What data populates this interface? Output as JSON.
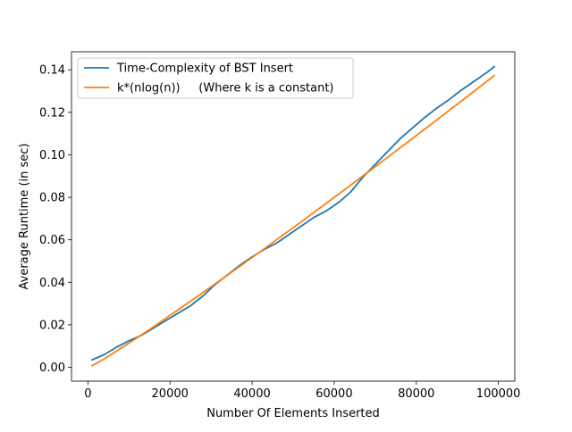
{
  "chart_data": {
    "type": "line",
    "title": "",
    "xlabel": "Number Of Elements Inserted",
    "ylabel": "Average Runtime (in sec)",
    "xlim": [
      -4000,
      104000
    ],
    "ylim": [
      -0.0065,
      0.1485
    ],
    "xticks": [
      0,
      20000,
      40000,
      60000,
      80000,
      100000
    ],
    "xtick_labels": [
      "0",
      "20000",
      "40000",
      "60000",
      "80000",
      "100000"
    ],
    "yticks": [
      0.0,
      0.02,
      0.04,
      0.06,
      0.08,
      0.1,
      0.12,
      0.14
    ],
    "ytick_labels": [
      "0.00",
      "0.02",
      "0.04",
      "0.06",
      "0.08",
      "0.10",
      "0.12",
      "0.14"
    ],
    "grid": false,
    "legend_position": "top-left",
    "series": [
      {
        "name": "Time-Complexity of BST Insert",
        "color": "#1f77b4",
        "x": [
          1000,
          4000,
          7000,
          10000,
          13000,
          16000,
          19000,
          22000,
          25000,
          28000,
          31000,
          34000,
          37000,
          40000,
          43000,
          46000,
          49000,
          52000,
          55000,
          58000,
          61000,
          64000,
          67000,
          70000,
          73000,
          76000,
          79000,
          82000,
          85000,
          88000,
          91000,
          94000,
          97000,
          99000
        ],
        "y": [
          0.0035,
          0.006,
          0.0095,
          0.0125,
          0.015,
          0.0185,
          0.022,
          0.0255,
          0.029,
          0.0335,
          0.039,
          0.0435,
          0.048,
          0.052,
          0.0555,
          0.0585,
          0.0625,
          0.0665,
          0.0705,
          0.0735,
          0.0775,
          0.0825,
          0.0895,
          0.0955,
          0.1015,
          0.1075,
          0.1125,
          0.1175,
          0.122,
          0.126,
          0.1305,
          0.1345,
          0.1385,
          0.1415
        ]
      },
      {
        "name": "k*(nlog(n))     (Where k is a constant)",
        "color": "#ff7f0e",
        "x": [
          1000,
          4000,
          7000,
          10000,
          13000,
          16000,
          19000,
          22000,
          25000,
          28000,
          31000,
          34000,
          37000,
          40000,
          43000,
          46000,
          49000,
          52000,
          55000,
          58000,
          61000,
          64000,
          67000,
          70000,
          73000,
          76000,
          79000,
          82000,
          85000,
          88000,
          91000,
          94000,
          97000,
          99000
        ],
        "y": [
          0.0008,
          0.004,
          0.0077,
          0.0114,
          0.0152,
          0.0191,
          0.0231,
          0.0271,
          0.0311,
          0.0352,
          0.0393,
          0.0434,
          0.0475,
          0.0517,
          0.0558,
          0.0601,
          0.0643,
          0.0685,
          0.0728,
          0.0771,
          0.0814,
          0.0857,
          0.0901,
          0.0944,
          0.0988,
          0.1032,
          0.1076,
          0.112,
          0.1164,
          0.1209,
          0.1253,
          0.1298,
          0.1343,
          0.1373
        ]
      }
    ]
  }
}
